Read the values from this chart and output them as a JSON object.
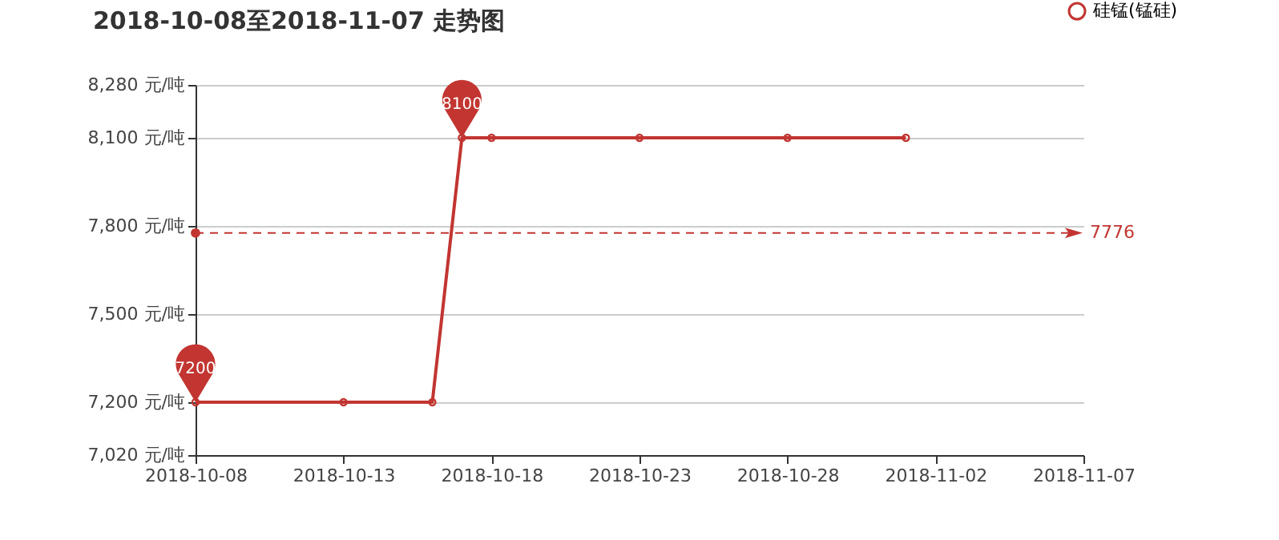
{
  "chart_data": {
    "type": "line",
    "title": "2018-10-08至2018-11-07 走势图",
    "x": [
      "2018-10-08",
      "2018-10-13",
      "2018-10-16",
      "2018-10-17",
      "2018-10-18",
      "2018-10-23",
      "2018-10-28",
      "2018-11-01"
    ],
    "series": [
      {
        "name": "硅锰(锰硅)",
        "color": "#c23531",
        "values": [
          7200,
          7200,
          7200,
          8100,
          8100,
          8100,
          8100,
          8100
        ]
      }
    ],
    "xlim": [
      "2018-10-08",
      "2018-11-07"
    ],
    "xticks": [
      "2018-10-08",
      "2018-10-13",
      "2018-10-18",
      "2018-10-23",
      "2018-10-28",
      "2018-11-02",
      "2018-11-07"
    ],
    "ylim": [
      7020,
      8280
    ],
    "yticks": [
      {
        "value": 7020,
        "label": "7,020 元/吨"
      },
      {
        "value": 7200,
        "label": "7,200 元/吨"
      },
      {
        "value": 7500,
        "label": "7,500 元/吨"
      },
      {
        "value": 7800,
        "label": "7,800 元/吨"
      },
      {
        "value": 8100,
        "label": "8,100 元/吨"
      },
      {
        "value": 8280,
        "label": "8,280 元/吨"
      }
    ],
    "annotations": [
      {
        "text": "8100",
        "x": "2018-10-17",
        "y": 8100
      },
      {
        "text": "7200",
        "x": "2018-10-08",
        "y": 7200
      }
    ],
    "ref_lines": [
      {
        "axis": "y",
        "value": 7776,
        "label": "7776",
        "color": "#c23531",
        "line_style": "dashed"
      }
    ],
    "grid": "y",
    "legend": "top right",
    "marker": "circle",
    "line_style": "solid"
  }
}
